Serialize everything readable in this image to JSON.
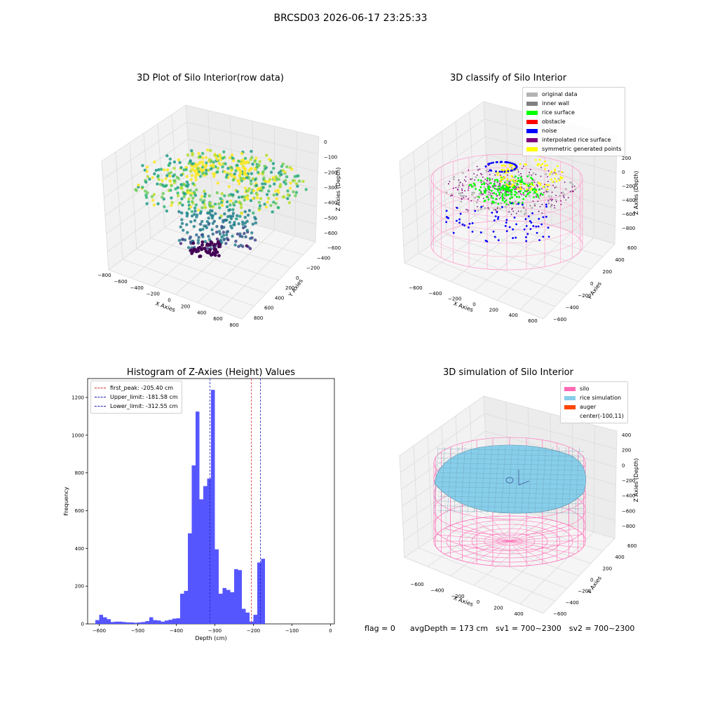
{
  "suptitle": "BRCSD03 2026-06-17 23:25:33",
  "footer": {
    "flag": "flag = 0",
    "avg": "avgDepth = 173 cm",
    "sv1": "sv1 = 700~2300",
    "sv2": "sv2 = 700~2300"
  },
  "colors": {
    "hist_bar": "#4d4dff",
    "peak_line": "#e03030",
    "limit_line": "#2020c0",
    "silo": "#ff69b4",
    "rice": "#87ceeb",
    "auger": "#ff4500"
  },
  "chart_data": [
    {
      "type": "scatter",
      "panel": "raw",
      "title": "3D Plot of Silo Interior(row data)",
      "xlabel": "X Axies",
      "ylabel": "Y Axies",
      "zlabel": "Z Axies (Depth)",
      "x_ticks": [
        "−800",
        "−600",
        "−400",
        "−200",
        "0",
        "200",
        "400",
        "600",
        "800"
      ],
      "y_ticks": [
        "−600",
        "−400",
        "−200",
        "0",
        "200",
        "400",
        "600",
        "800"
      ],
      "z_ticks": [
        "0",
        "−100",
        "−200",
        "−300",
        "−400",
        "−500",
        "−600"
      ],
      "xlim": [
        -800,
        800
      ],
      "ylim": [
        -600,
        800
      ],
      "zlim": [
        -650,
        0
      ]
    },
    {
      "type": "scatter",
      "panel": "classify",
      "title": "3D classify of Silo Interior",
      "xlabel": "X Axies",
      "ylabel": "Y Axies",
      "zlabel": "Z Axies (Depth)",
      "x_ticks": [
        "−600",
        "−400",
        "−200",
        "0",
        "200",
        "400",
        "600"
      ],
      "y_ticks": [
        "−600",
        "−400",
        "−200",
        "0",
        "200",
        "400",
        "600"
      ],
      "z_ticks": [
        "200",
        "0",
        "−200",
        "−400",
        "−600",
        "−800"
      ],
      "legend": [
        {
          "label": "original data",
          "color": "#b3b3b3"
        },
        {
          "label": "inner wall",
          "color": "#808080"
        },
        {
          "label": "rice surface",
          "color": "#00ff00"
        },
        {
          "label": "obstacle",
          "color": "#ff0000"
        },
        {
          "label": "noise",
          "color": "#0000ff"
        },
        {
          "label": "interpolated rice surface",
          "color": "#800080"
        },
        {
          "label": "symmetric generated points",
          "color": "#ffff00"
        }
      ]
    },
    {
      "type": "bar",
      "panel": "histogram",
      "title": "Histogram of Z-Axies (Height) Values",
      "xlabel": "Depth (cm)",
      "ylabel": "Frequency",
      "xlim": [
        -630,
        10
      ],
      "ylim": [
        0,
        1300
      ],
      "x_ticks": [
        -600,
        -500,
        -400,
        -300,
        -200,
        -100,
        0
      ],
      "y_ticks": [
        0,
        200,
        400,
        600,
        800,
        1000,
        1200
      ],
      "bin_start": -610,
      "bin_width": 10,
      "values": [
        20,
        48,
        35,
        25,
        10,
        12,
        12,
        10,
        8,
        8,
        6,
        8,
        10,
        15,
        35,
        20,
        18,
        12,
        18,
        22,
        28,
        30,
        160,
        175,
        480,
        840,
        1125,
        660,
        730,
        770,
        1240,
        395,
        160,
        190,
        180,
        168,
        290,
        285,
        80,
        60,
        12,
        48,
        325,
        345
      ],
      "lines": [
        {
          "label": "first_peak: -205.40 cm",
          "x": -205.4,
          "color": "#e03030"
        },
        {
          "label": "Upper_limit: -181.58 cm",
          "x": -181.58,
          "color": "#2020c0"
        },
        {
          "label": "Lower_limit: -312.55 cm",
          "x": -312.55,
          "color": "#2020c0"
        }
      ]
    },
    {
      "type": "scatter",
      "panel": "simulation",
      "title": "3D simulation of Silo Interior",
      "xlabel": "X Axies",
      "ylabel": "Y Axies",
      "zlabel": "Z Axies (Depth)",
      "x_ticks": [
        "−600",
        "−400",
        "−200",
        "0",
        "200",
        "400"
      ],
      "y_ticks": [
        "−600",
        "−400",
        "−200",
        "0",
        "200",
        "400",
        "600"
      ],
      "z_ticks": [
        "400",
        "200",
        "0",
        "−200",
        "−400",
        "−600",
        "−800"
      ],
      "legend": [
        {
          "label": "silo",
          "color": "#ff69b4"
        },
        {
          "label": "rice simulation",
          "color": "#87ceeb"
        },
        {
          "label": "auger",
          "color": "#ff4500"
        },
        {
          "label": "center(-100,11)",
          "color": ""
        }
      ]
    }
  ]
}
